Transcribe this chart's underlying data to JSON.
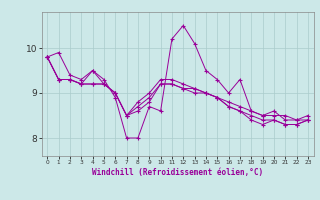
{
  "title": "",
  "xlabel": "Windchill (Refroidissement éolien,°C)",
  "ylabel": "",
  "bg_color": "#cce8e8",
  "line_color": "#990099",
  "grid_color": "#aacccc",
  "xlim": [
    -0.5,
    23.5
  ],
  "ylim": [
    7.6,
    10.8
  ],
  "xticks": [
    0,
    1,
    2,
    3,
    4,
    5,
    6,
    7,
    8,
    9,
    10,
    11,
    12,
    13,
    14,
    15,
    16,
    17,
    18,
    19,
    20,
    21,
    22,
    23
  ],
  "yticks": [
    8,
    9,
    10
  ],
  "series": [
    [
      9.8,
      9.9,
      9.4,
      9.3,
      9.5,
      9.3,
      8.9,
      8.0,
      8.0,
      8.7,
      8.6,
      10.2,
      10.5,
      10.1,
      9.5,
      9.3,
      9.0,
      9.3,
      8.6,
      8.5,
      8.6,
      8.4,
      8.4,
      8.5
    ],
    [
      9.8,
      9.3,
      9.3,
      9.2,
      9.5,
      9.2,
      9.0,
      8.5,
      8.8,
      9.0,
      9.3,
      9.3,
      9.2,
      9.1,
      9.0,
      8.9,
      8.8,
      8.7,
      8.6,
      8.5,
      8.5,
      8.5,
      8.4,
      8.4
    ],
    [
      9.8,
      9.3,
      9.3,
      9.2,
      9.2,
      9.2,
      9.0,
      8.5,
      8.6,
      8.8,
      9.2,
      9.2,
      9.1,
      9.1,
      9.0,
      8.9,
      8.7,
      8.6,
      8.5,
      8.4,
      8.4,
      8.3,
      8.3,
      8.4
    ],
    [
      9.8,
      9.3,
      9.3,
      9.2,
      9.2,
      9.2,
      9.0,
      8.5,
      8.7,
      8.9,
      9.2,
      9.2,
      9.1,
      9.0,
      9.0,
      8.9,
      8.7,
      8.6,
      8.4,
      8.3,
      8.4,
      8.3,
      8.3,
      8.4
    ]
  ]
}
